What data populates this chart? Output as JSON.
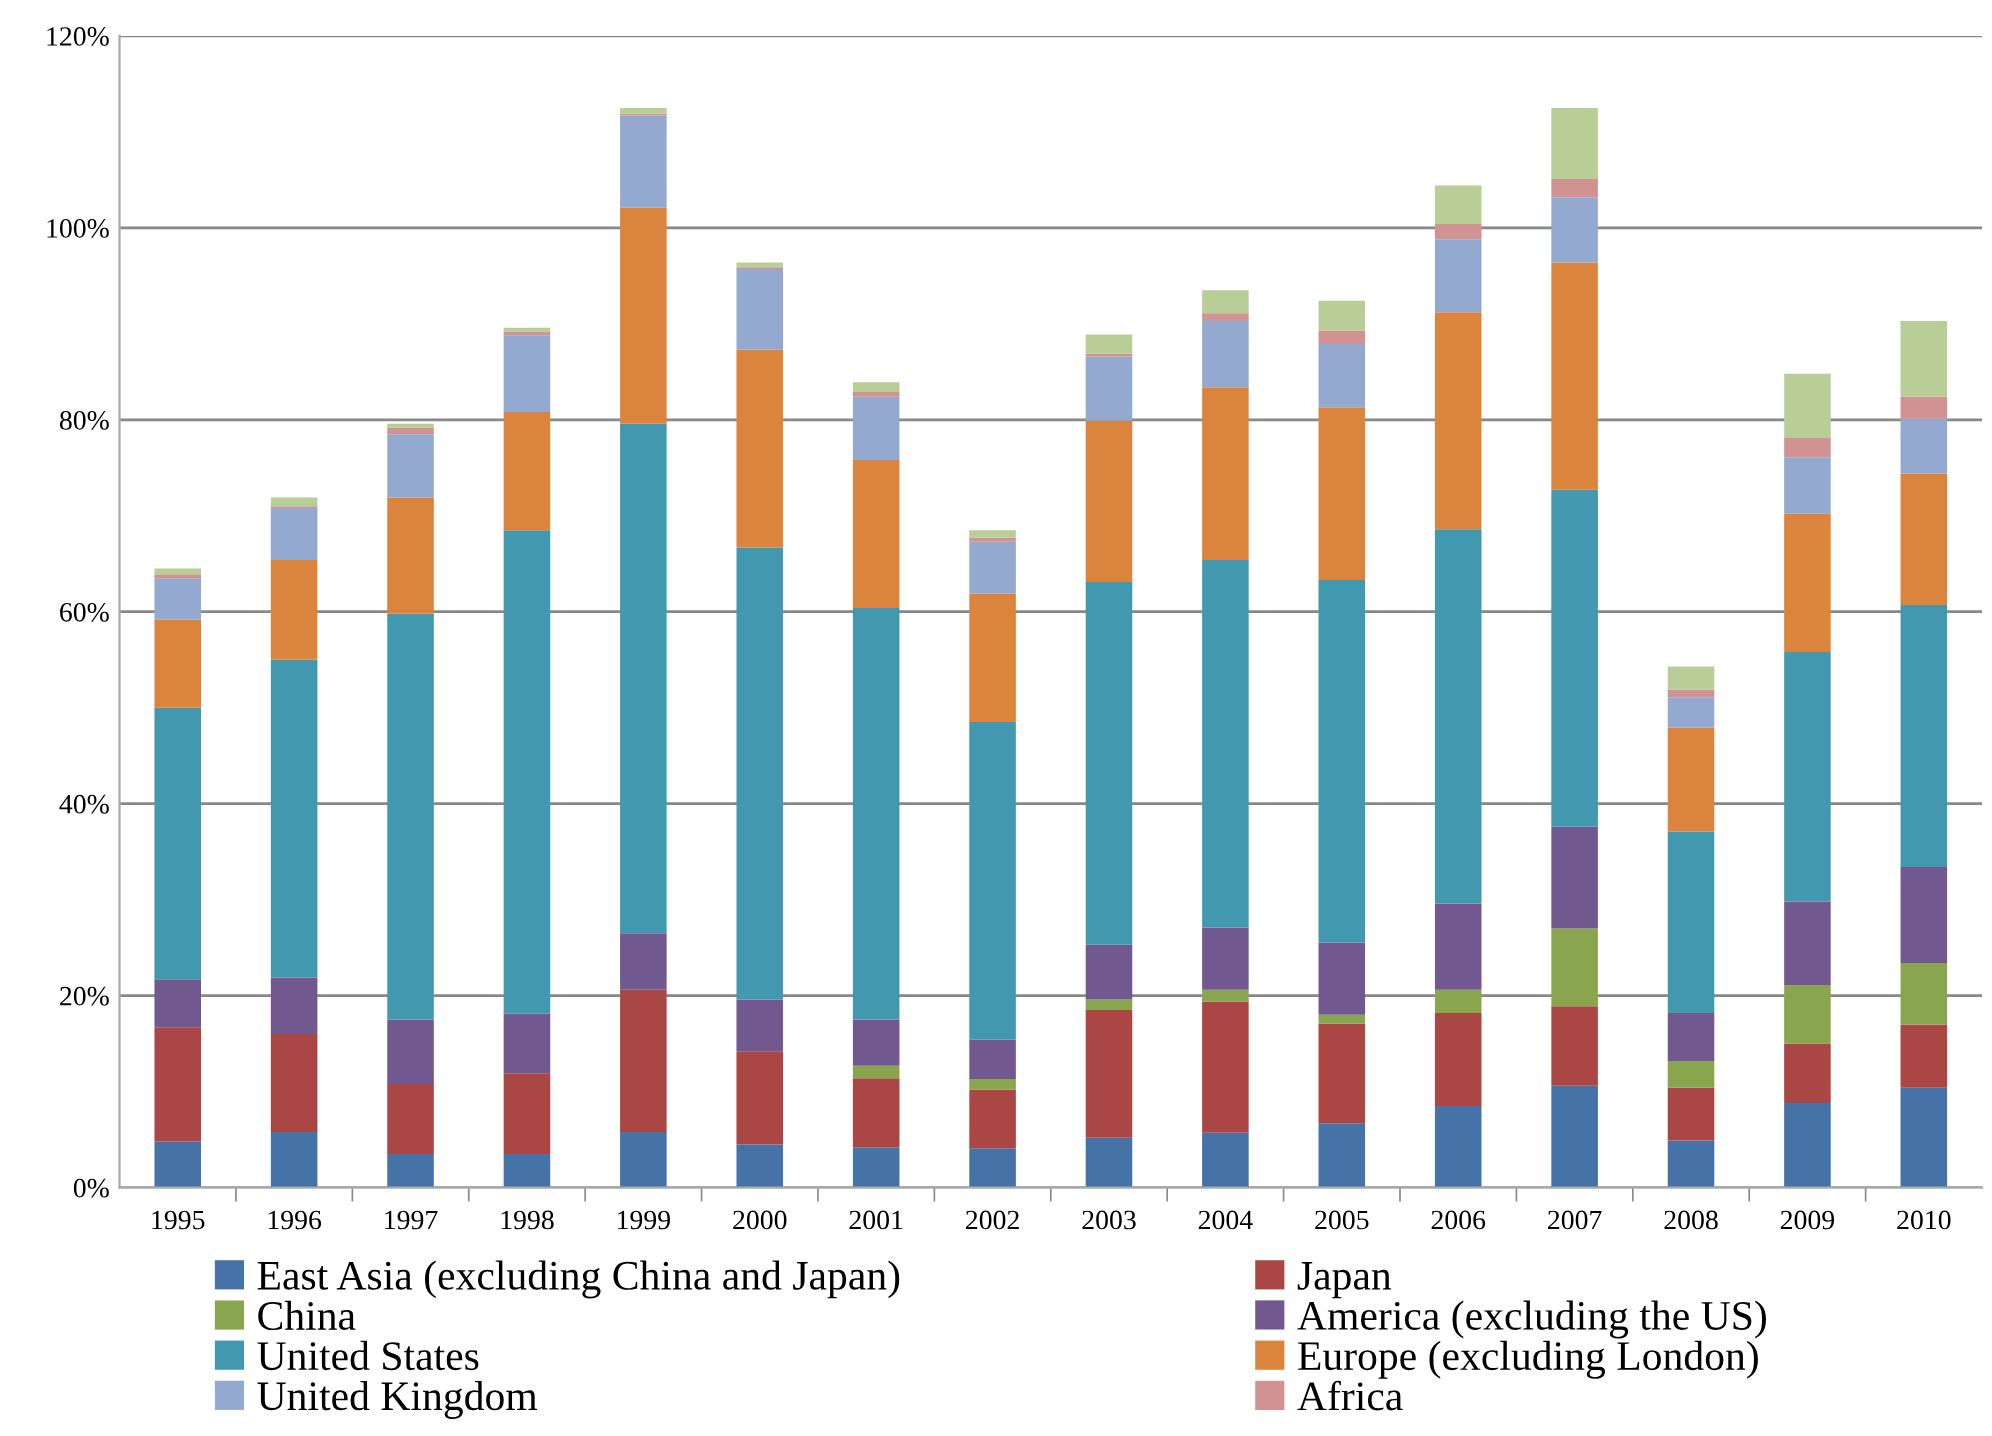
{
  "chart_data": {
    "type": "bar",
    "stacked": true,
    "categories": [
      "1995",
      "1996",
      "1997",
      "1998",
      "1999",
      "2000",
      "2001",
      "2002",
      "2003",
      "2004",
      "2005",
      "2006",
      "2007",
      "2008",
      "2009",
      "2010"
    ],
    "series": [
      {
        "name": "East Asia (excluding China and Japan)",
        "color": "#4572a7",
        "values": [
          4.8,
          5.8,
          3.5,
          3.5,
          5.8,
          4.5,
          4.2,
          4.1,
          5.2,
          5.7,
          6.7,
          8.5,
          10.6,
          4.9,
          8.8,
          10.4
        ]
      },
      {
        "name": "Japan",
        "color": "#aa4643",
        "values": [
          11.9,
          10.2,
          7.3,
          8.4,
          14.8,
          9.7,
          7.2,
          6.1,
          13.3,
          13.7,
          10.4,
          9.7,
          8.3,
          5.5,
          6.2,
          6.6
        ]
      },
      {
        "name": "China",
        "color": "#89a54e",
        "values": [
          0,
          0,
          0,
          0,
          0,
          0,
          1.3,
          1.1,
          1.1,
          1.2,
          0.9,
          2.4,
          8.1,
          2.8,
          6.1,
          6.4
        ]
      },
      {
        "name": "America (excluding the US)",
        "color": "#71588f",
        "values": [
          5.0,
          5.9,
          6.7,
          6.2,
          5.9,
          5.4,
          4.8,
          4.1,
          5.7,
          6.5,
          7.5,
          9.0,
          10.6,
          5.0,
          8.7,
          10.0
        ]
      },
      {
        "name": "United States",
        "color": "#4198af",
        "values": [
          28.3,
          33.1,
          42.3,
          50.4,
          53.1,
          47.1,
          42.9,
          33.1,
          37.8,
          38.3,
          37.8,
          39.0,
          35.1,
          18.9,
          26.0,
          27.3
        ]
      },
      {
        "name": "Europe (excluding London)",
        "color": "#db843d",
        "values": [
          9.2,
          10.4,
          12.1,
          12.3,
          22.5,
          20.6,
          15.4,
          13.4,
          16.8,
          18.0,
          18.0,
          22.6,
          23.7,
          10.8,
          14.4,
          13.7
        ]
      },
      {
        "name": "United Kingdom",
        "color": "#93a9cf",
        "values": [
          4.3,
          5.4,
          6.6,
          8.0,
          9.6,
          8.4,
          6.6,
          5.4,
          6.7,
          6.9,
          6.6,
          7.6,
          6.8,
          3.2,
          5.9,
          5.7
        ]
      },
      {
        "name": "Africa",
        "color": "#d19392",
        "values": [
          0.4,
          0.2,
          0.7,
          0.4,
          0.2,
          0.2,
          0.5,
          0.4,
          0.3,
          0.8,
          1.4,
          1.6,
          1.9,
          0.8,
          2.0,
          2.3
        ]
      },
      {
        "color": "#b9cd96",
        "values": [
          0.6,
          0.9,
          0.4,
          0.4,
          0.6,
          0.5,
          1.0,
          0.8,
          2.0,
          2.4,
          3.1,
          4.0,
          7.4,
          2.4,
          6.7,
          7.9
        ]
      }
    ],
    "ylim": [
      0,
      120
    ],
    "yticks": [
      {
        "value": 0,
        "label": "0%"
      },
      {
        "value": 20,
        "label": "20%"
      },
      {
        "value": 40,
        "label": "40%"
      },
      {
        "value": 60,
        "label": "60%"
      },
      {
        "value": 80,
        "label": "80%"
      },
      {
        "value": 100,
        "label": "100%"
      },
      {
        "value": 120,
        "label": "120%"
      }
    ],
    "grid": "y",
    "legend": "bottom"
  }
}
